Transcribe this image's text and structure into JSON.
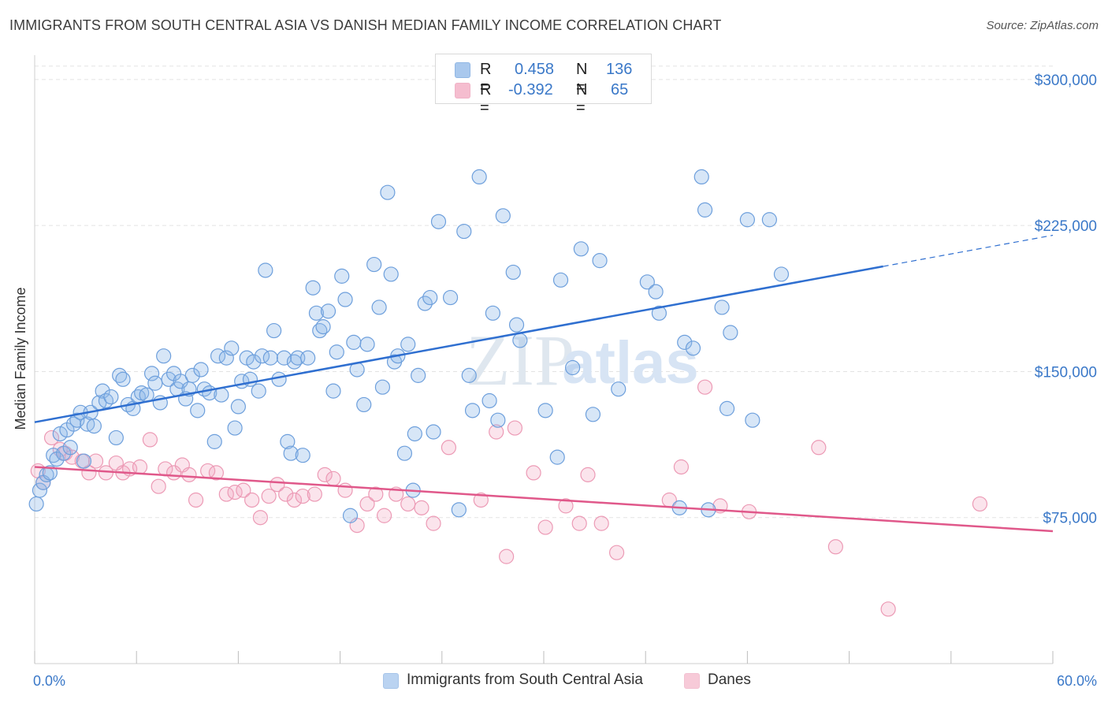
{
  "header": {
    "title": "IMMIGRANTS FROM SOUTH CENTRAL ASIA VS DANISH MEDIAN FAMILY INCOME CORRELATION CHART",
    "source": "Source: ZipAtlas.com"
  },
  "watermark": {
    "zip": "ZIP",
    "atlas": "atlas"
  },
  "legend": {
    "rows": [
      {
        "r_label": "R =",
        "r_value": "0.458",
        "n_label": "N =",
        "n_value": "136",
        "color": "#8db6e8"
      },
      {
        "r_label": "R =",
        "r_value": "-0.392",
        "n_label": "N =",
        "n_value": "65",
        "color": "#f2a7bf"
      }
    ]
  },
  "bottom_legend": {
    "items": [
      {
        "label": "Immigrants from South Central Asia",
        "color": "#8db6e8"
      },
      {
        "label": "Danes",
        "color": "#f2a7bf"
      }
    ]
  },
  "colors": {
    "blue_fill": "rgba(141,182,232,0.35)",
    "blue_stroke": "#6d9fdc",
    "blue_line": "#2f6fd0",
    "pink_fill": "rgba(242,167,191,0.30)",
    "pink_stroke": "#ec9ab5",
    "pink_line": "#e0588a",
    "grid": "#e3e3e3",
    "axis_label": "#3a78c8"
  },
  "chart_data": {
    "type": "scatter",
    "title": "IMMIGRANTS FROM SOUTH CENTRAL ASIA VS DANISH MEDIAN FAMILY INCOME CORRELATION CHART",
    "xlabel": "",
    "ylabel": "Median Family Income",
    "x_unit": "percent",
    "xlim": [
      0,
      60
    ],
    "ylim": [
      0,
      312500
    ],
    "x_tick_labels": [
      {
        "value": 0,
        "label": "0.0%"
      },
      {
        "value": 60,
        "label": "60.0%"
      }
    ],
    "y_ticks": [
      {
        "value": 75000,
        "label": "$75,000"
      },
      {
        "value": 150000,
        "label": "$150,000"
      },
      {
        "value": 225000,
        "label": "$225,000"
      },
      {
        "value": 300000,
        "label": "$300,000"
      }
    ],
    "grid": true,
    "series": [
      {
        "name": "Immigrants from South Central Asia",
        "R": 0.458,
        "N": 136,
        "trend": {
          "x0": 0,
          "y0": 124000,
          "x1": 50,
          "y1": 204000,
          "dash_to": 60,
          "dash_y": 220000
        },
        "points": [
          [
            0.1,
            82000
          ],
          [
            0.3,
            89000
          ],
          [
            0.5,
            93000
          ],
          [
            0.7,
            97000
          ],
          [
            0.9,
            98000
          ],
          [
            1.1,
            107000
          ],
          [
            1.3,
            105000
          ],
          [
            1.5,
            118000
          ],
          [
            1.7,
            108000
          ],
          [
            1.9,
            120000
          ],
          [
            2.1,
            111000
          ],
          [
            2.3,
            123000
          ],
          [
            2.5,
            125000
          ],
          [
            2.7,
            129000
          ],
          [
            2.9,
            104000
          ],
          [
            3.1,
            123000
          ],
          [
            3.3,
            129000
          ],
          [
            3.5,
            122000
          ],
          [
            3.8,
            134000
          ],
          [
            4.0,
            140000
          ],
          [
            4.2,
            135000
          ],
          [
            4.5,
            137000
          ],
          [
            4.8,
            116000
          ],
          [
            5.0,
            148000
          ],
          [
            5.2,
            146000
          ],
          [
            5.5,
            133000
          ],
          [
            5.8,
            131000
          ],
          [
            6.1,
            137000
          ],
          [
            6.3,
            139000
          ],
          [
            6.6,
            138000
          ],
          [
            6.9,
            149000
          ],
          [
            7.1,
            144000
          ],
          [
            7.4,
            134000
          ],
          [
            7.6,
            158000
          ],
          [
            7.9,
            146000
          ],
          [
            8.2,
            149000
          ],
          [
            8.4,
            141000
          ],
          [
            8.6,
            145000
          ],
          [
            8.9,
            136000
          ],
          [
            9.1,
            141000
          ],
          [
            9.3,
            148000
          ],
          [
            9.6,
            130000
          ],
          [
            9.8,
            151000
          ],
          [
            10.0,
            141000
          ],
          [
            10.3,
            139000
          ],
          [
            10.6,
            114000
          ],
          [
            10.8,
            158000
          ],
          [
            11.0,
            138000
          ],
          [
            11.3,
            157000
          ],
          [
            11.6,
            162000
          ],
          [
            11.8,
            121000
          ],
          [
            12.0,
            132000
          ],
          [
            12.2,
            145000
          ],
          [
            12.5,
            157000
          ],
          [
            12.7,
            146000
          ],
          [
            12.9,
            155000
          ],
          [
            13.2,
            140000
          ],
          [
            13.4,
            158000
          ],
          [
            13.6,
            202000
          ],
          [
            13.9,
            157000
          ],
          [
            14.1,
            171000
          ],
          [
            14.4,
            146000
          ],
          [
            14.7,
            157000
          ],
          [
            14.9,
            114000
          ],
          [
            15.1,
            108000
          ],
          [
            15.3,
            155000
          ],
          [
            15.5,
            157000
          ],
          [
            15.8,
            107000
          ],
          [
            16.1,
            157000
          ],
          [
            16.4,
            193000
          ],
          [
            16.6,
            180000
          ],
          [
            16.8,
            171000
          ],
          [
            17.0,
            173000
          ],
          [
            17.3,
            181000
          ],
          [
            17.6,
            140000
          ],
          [
            17.8,
            160000
          ],
          [
            18.1,
            199000
          ],
          [
            18.3,
            187000
          ],
          [
            18.6,
            76000
          ],
          [
            18.8,
            165000
          ],
          [
            19.0,
            151000
          ],
          [
            19.4,
            133000
          ],
          [
            19.6,
            164000
          ],
          [
            20.0,
            205000
          ],
          [
            20.3,
            183000
          ],
          [
            20.5,
            142000
          ],
          [
            20.8,
            242000
          ],
          [
            21.0,
            200000
          ],
          [
            21.2,
            155000
          ],
          [
            21.4,
            158000
          ],
          [
            21.8,
            108000
          ],
          [
            22.0,
            164000
          ],
          [
            22.3,
            89000
          ],
          [
            22.4,
            118000
          ],
          [
            22.6,
            148000
          ],
          [
            23.0,
            185000
          ],
          [
            23.3,
            188000
          ],
          [
            23.5,
            119000
          ],
          [
            23.8,
            227000
          ],
          [
            24.5,
            188000
          ],
          [
            25.0,
            79000
          ],
          [
            25.3,
            222000
          ],
          [
            25.6,
            148000
          ],
          [
            25.8,
            130000
          ],
          [
            26.2,
            250000
          ],
          [
            26.8,
            135000
          ],
          [
            27.0,
            180000
          ],
          [
            27.3,
            125000
          ],
          [
            27.6,
            230000
          ],
          [
            28.2,
            201000
          ],
          [
            28.4,
            174000
          ],
          [
            28.6,
            166000
          ],
          [
            30.1,
            130000
          ],
          [
            30.8,
            106000
          ],
          [
            31.0,
            197000
          ],
          [
            31.7,
            152000
          ],
          [
            32.2,
            213000
          ],
          [
            32.9,
            128000
          ],
          [
            33.3,
            207000
          ],
          [
            34.4,
            141000
          ],
          [
            36.1,
            196000
          ],
          [
            36.6,
            191000
          ],
          [
            36.8,
            180000
          ],
          [
            38.0,
            80000
          ],
          [
            38.3,
            165000
          ],
          [
            38.8,
            162000
          ],
          [
            39.3,
            250000
          ],
          [
            39.5,
            233000
          ],
          [
            39.7,
            79000
          ],
          [
            40.5,
            183000
          ],
          [
            40.8,
            131000
          ],
          [
            41.0,
            170000
          ],
          [
            42.0,
            228000
          ],
          [
            42.3,
            125000
          ],
          [
            43.3,
            228000
          ],
          [
            44.0,
            200000
          ]
        ]
      },
      {
        "name": "Danes",
        "R": -0.392,
        "N": 65,
        "trend": {
          "x0": 0,
          "y0": 101000,
          "x1": 60,
          "y1": 68000
        },
        "points": [
          [
            0.2,
            99000
          ],
          [
            0.5,
            93000
          ],
          [
            1.0,
            116000
          ],
          [
            1.5,
            110000
          ],
          [
            1.8,
            108000
          ],
          [
            2.2,
            106000
          ],
          [
            2.8,
            104000
          ],
          [
            3.2,
            98000
          ],
          [
            3.6,
            104000
          ],
          [
            4.2,
            98000
          ],
          [
            4.8,
            103000
          ],
          [
            5.2,
            98000
          ],
          [
            5.6,
            100000
          ],
          [
            6.2,
            101000
          ],
          [
            6.8,
            115000
          ],
          [
            7.3,
            91000
          ],
          [
            7.7,
            100000
          ],
          [
            8.2,
            98000
          ],
          [
            8.7,
            102000
          ],
          [
            9.1,
            97000
          ],
          [
            9.5,
            84000
          ],
          [
            10.2,
            99000
          ],
          [
            10.7,
            98000
          ],
          [
            11.3,
            87000
          ],
          [
            11.8,
            88000
          ],
          [
            12.3,
            89000
          ],
          [
            12.8,
            84000
          ],
          [
            13.3,
            75000
          ],
          [
            13.8,
            86000
          ],
          [
            14.3,
            92000
          ],
          [
            14.8,
            87000
          ],
          [
            15.3,
            84000
          ],
          [
            15.8,
            86000
          ],
          [
            16.5,
            87000
          ],
          [
            17.1,
            97000
          ],
          [
            17.6,
            95000
          ],
          [
            18.3,
            89000
          ],
          [
            19.0,
            71000
          ],
          [
            19.6,
            82000
          ],
          [
            20.1,
            87000
          ],
          [
            20.6,
            76000
          ],
          [
            21.3,
            87000
          ],
          [
            22.0,
            82000
          ],
          [
            22.8,
            80000
          ],
          [
            23.5,
            72000
          ],
          [
            24.4,
            111000
          ],
          [
            26.3,
            84000
          ],
          [
            27.2,
            119000
          ],
          [
            27.8,
            55000
          ],
          [
            28.3,
            121000
          ],
          [
            29.4,
            98000
          ],
          [
            30.1,
            70000
          ],
          [
            31.3,
            81000
          ],
          [
            32.1,
            72000
          ],
          [
            32.6,
            97000
          ],
          [
            33.4,
            72000
          ],
          [
            34.3,
            57000
          ],
          [
            37.4,
            84000
          ],
          [
            38.1,
            101000
          ],
          [
            39.5,
            142000
          ],
          [
            40.4,
            81000
          ],
          [
            42.1,
            78000
          ],
          [
            46.2,
            111000
          ],
          [
            47.2,
            60000
          ],
          [
            55.7,
            82000
          ]
        ],
        "outliers": [
          [
            50.3,
            28000
          ]
        ]
      }
    ]
  }
}
